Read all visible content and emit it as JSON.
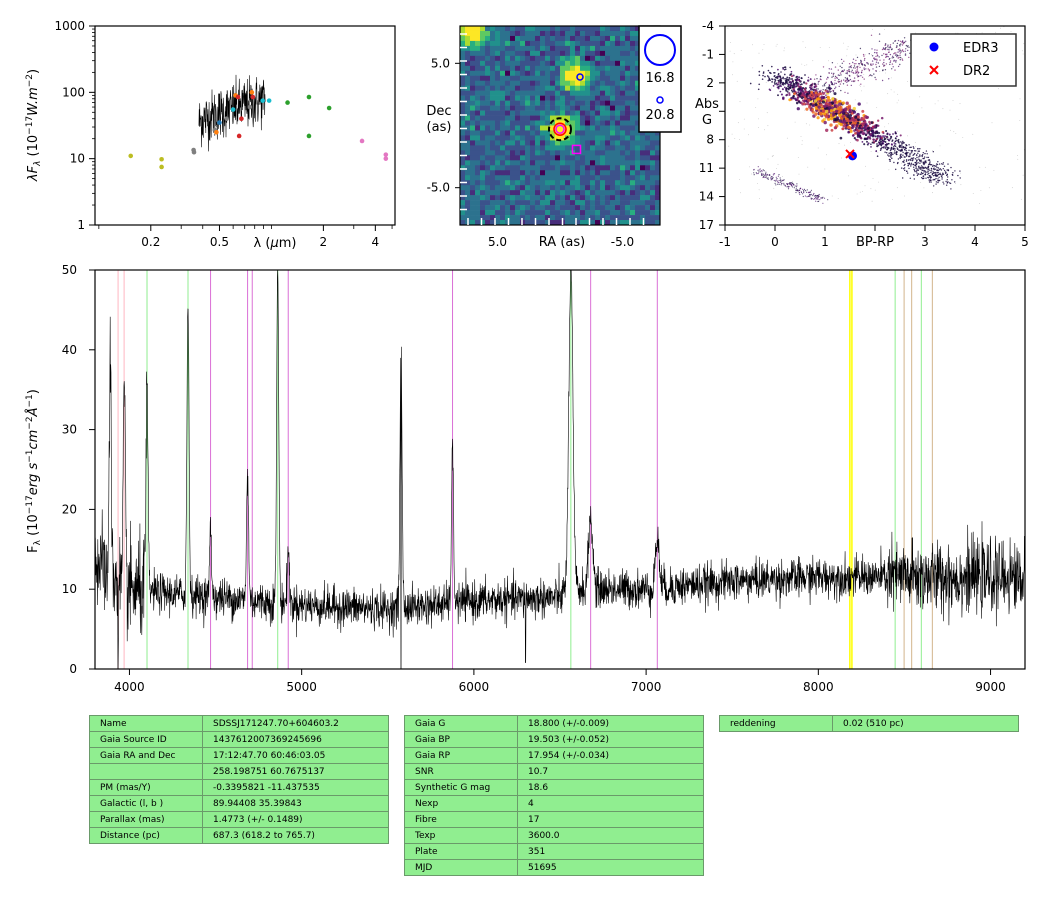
{
  "colors": {
    "sed_black": "#000000",
    "sed_olive": "#bcbd22",
    "sed_gray": "#7f7f7f",
    "sed_red": "#d62728",
    "sed_orange": "#ff7f0e",
    "sed_cyan": "#17becf",
    "sed_blue": "#1f77b4",
    "sed_green": "#2ca02c",
    "sed_pink": "#e377c2",
    "img_dark": "#2c3b6e",
    "img_teal": "#21908d",
    "img_yellow": "#fde725",
    "hr_edr3": "#0000ff",
    "hr_dr2": "#ff0000",
    "line_pink": "#ffb6c1",
    "line_green": "#90ee90",
    "line_violet": "#da70d6",
    "line_yellow": "#ffff00",
    "line_tan": "#d2b48c",
    "table_fill": "#90ee90"
  },
  "chart_data": [
    {
      "type": "scatter",
      "id": "sed",
      "ylabel": "λF_λ (10^-17 W.m^-2)",
      "xlabel": "λ (μm)",
      "x_scale": "log",
      "y_scale": "log",
      "xlim": [
        0.095,
        5.2
      ],
      "ylim": [
        1,
        1000
      ],
      "x_ticks": [
        "0.2",
        "0.5",
        "2",
        "4"
      ],
      "x_tick_values": [
        0.2,
        0.5,
        2,
        4
      ],
      "y_ticks": [
        "1",
        "10",
        "100",
        "1000"
      ],
      "y_tick_values": [
        1,
        10,
        100,
        1000
      ],
      "spectrum_segment": {
        "x_range": [
          0.38,
          0.92
        ],
        "y_level": 60
      },
      "points": [
        {
          "x": 0.153,
          "y": 11.0,
          "c": "sed_olive"
        },
        {
          "x": 0.231,
          "y": 9.8,
          "c": "sed_olive"
        },
        {
          "x": 0.231,
          "y": 7.5,
          "c": "sed_olive"
        },
        {
          "x": 0.354,
          "y": 13.5,
          "c": "sed_gray"
        },
        {
          "x": 0.356,
          "y": 12.5,
          "c": "sed_gray"
        },
        {
          "x": 0.47,
          "y": 27.0,
          "c": "sed_gray"
        },
        {
          "x": 0.48,
          "y": 25.0,
          "c": "sed_orange"
        },
        {
          "x": 0.5,
          "y": 35.0,
          "c": "sed_blue"
        },
        {
          "x": 0.55,
          "y": 40.0,
          "c": "sed_gray"
        },
        {
          "x": 0.6,
          "y": 55.0,
          "c": "sed_cyan"
        },
        {
          "x": 0.62,
          "y": 90.0,
          "c": "sed_orange"
        },
        {
          "x": 0.64,
          "y": 85.0,
          "c": "sed_red"
        },
        {
          "x": 0.65,
          "y": 22.0,
          "c": "sed_red"
        },
        {
          "x": 0.67,
          "y": 40.0,
          "c": "sed_red"
        },
        {
          "x": 0.75,
          "y": 60.0,
          "c": "sed_gray"
        },
        {
          "x": 0.77,
          "y": 100.0,
          "c": "sed_orange"
        },
        {
          "x": 0.78,
          "y": 85.0,
          "c": "sed_red"
        },
        {
          "x": 0.89,
          "y": 75.0,
          "c": "sed_cyan"
        },
        {
          "x": 0.97,
          "y": 75.0,
          "c": "sed_cyan"
        },
        {
          "x": 1.24,
          "y": 70.0,
          "c": "sed_green"
        },
        {
          "x": 1.65,
          "y": 85.0,
          "c": "sed_green"
        },
        {
          "x": 1.65,
          "y": 22.0,
          "c": "sed_green"
        },
        {
          "x": 2.16,
          "y": 58.0,
          "c": "sed_green"
        },
        {
          "x": 3.35,
          "y": 18.5,
          "c": "sed_pink"
        },
        {
          "x": 4.6,
          "y": 11.5,
          "c": "sed_pink"
        },
        {
          "x": 4.6,
          "y": 10.0,
          "c": "sed_pink"
        }
      ]
    },
    {
      "type": "heatmap",
      "id": "image",
      "xlabel": "RA (as)",
      "ylabel": "Dec\n(as)",
      "x_ticks": [
        "5.0",
        "-5.0"
      ],
      "x_tick_values": [
        5.0,
        -5.0
      ],
      "y_ticks": [
        "5.0",
        "-5.0"
      ],
      "y_tick_values": [
        5.0,
        -5.0
      ],
      "xlim": [
        8,
        -8
      ],
      "ylim": [
        -8,
        8
      ],
      "sources": [
        {
          "x": 7.0,
          "y": 7.5,
          "flux": 1.0
        },
        {
          "x": -1.2,
          "y": 4.0,
          "flux": 0.9
        },
        {
          "x": 0.0,
          "y": -0.3,
          "flux": 1.0
        }
      ],
      "legend": [
        {
          "label": "16.8",
          "r": 16
        },
        {
          "label": "20.8",
          "r": 3
        }
      ]
    },
    {
      "type": "scatter",
      "id": "hr",
      "xlabel": "BP-RP",
      "ylabel": "Abs\nG",
      "xlim": [
        -1,
        5
      ],
      "ylim": [
        17,
        -4
      ],
      "x_ticks": [
        "-1",
        "0",
        "1",
        "2",
        "3",
        "4",
        "5"
      ],
      "x_tick_values": [
        -1,
        0,
        1,
        2,
        3,
        4,
        5
      ],
      "y_ticks": [
        "-4",
        "-1",
        "2",
        "5",
        "8",
        "11",
        "14",
        "17"
      ],
      "y_tick_values": [
        -4,
        -1,
        2,
        5,
        8,
        11,
        14,
        17
      ],
      "legend": [
        "EDR3",
        "DR2"
      ],
      "edr3": {
        "x": 1.55,
        "y": 9.7
      },
      "dr2": {
        "x": 1.5,
        "y": 9.5
      }
    },
    {
      "type": "line",
      "id": "spectrum",
      "ylabel": "F_λ (10^-17 erg s^-1 cm^-2 Å^-1)",
      "xlim": [
        3800,
        9200
      ],
      "ylim": [
        0,
        50
      ],
      "x_ticks": [
        "4000",
        "5000",
        "6000",
        "7000",
        "8000",
        "9000"
      ],
      "x_tick_values": [
        4000,
        5000,
        6000,
        7000,
        8000,
        9000
      ],
      "y_ticks": [
        "0",
        "10",
        "20",
        "30",
        "40",
        "50"
      ],
      "y_tick_values": [
        0,
        10,
        20,
        30,
        40,
        50
      ],
      "continuum": [
        [
          3800,
          14
        ],
        [
          3900,
          11
        ],
        [
          4000,
          10
        ],
        [
          4200,
          9.5
        ],
        [
          4500,
          9
        ],
        [
          5000,
          8
        ],
        [
          5500,
          7.5
        ],
        [
          6000,
          8.5
        ],
        [
          6500,
          9
        ],
        [
          6560,
          10
        ],
        [
          7000,
          10
        ],
        [
          7500,
          11
        ],
        [
          8000,
          11.5
        ],
        [
          8500,
          11.5
        ],
        [
          9200,
          11.5
        ]
      ],
      "emission_lines": [
        {
          "x": 3889,
          "peak": 38
        },
        {
          "x": 3970,
          "peak": 34
        },
        {
          "x": 4102,
          "peak": 35
        },
        {
          "x": 4340,
          "peak": 46
        },
        {
          "x": 4471,
          "peak": 17
        },
        {
          "x": 4686,
          "peak": 24
        },
        {
          "x": 4861,
          "peak": 50
        },
        {
          "x": 4922,
          "peak": 15
        },
        {
          "x": 5577,
          "peak": 41
        },
        {
          "x": 5876,
          "peak": 27
        },
        {
          "x": 6563,
          "peak": 50
        },
        {
          "x": 6678,
          "peak": 19
        },
        {
          "x": 7065,
          "peak": 16
        }
      ],
      "absorption_lines": [
        {
          "x": 3934,
          "depth": 0
        },
        {
          "x": 5577,
          "depth": 0
        },
        {
          "x": 6300,
          "depth": 0.8
        }
      ],
      "marker_lines": [
        {
          "x": 3934,
          "c": "line_pink"
        },
        {
          "x": 3969,
          "c": "line_pink"
        },
        {
          "x": 4102,
          "c": "line_green"
        },
        {
          "x": 4340,
          "c": "line_green"
        },
        {
          "x": 4471,
          "c": "line_violet"
        },
        {
          "x": 4686,
          "c": "line_violet"
        },
        {
          "x": 4713,
          "c": "line_violet"
        },
        {
          "x": 4861,
          "c": "line_green"
        },
        {
          "x": 4922,
          "c": "line_violet"
        },
        {
          "x": 5876,
          "c": "line_violet"
        },
        {
          "x": 6563,
          "c": "line_green"
        },
        {
          "x": 6678,
          "c": "line_violet"
        },
        {
          "x": 7065,
          "c": "line_violet"
        },
        {
          "x": 8183,
          "c": "line_yellow"
        },
        {
          "x": 8195,
          "c": "line_yellow"
        },
        {
          "x": 8446,
          "c": "line_green"
        },
        {
          "x": 8498,
          "c": "line_tan"
        },
        {
          "x": 8542,
          "c": "line_tan"
        },
        {
          "x": 8598,
          "c": "line_green"
        },
        {
          "x": 8662,
          "c": "line_tan"
        }
      ]
    }
  ],
  "tables": {
    "t1": [
      [
        "Name",
        "SDSSJ171247.70+604603.2"
      ],
      [
        "Gaia Source ID",
        "1437612007369245696"
      ],
      [
        "Gaia RA and Dec",
        "17:12:47.70    60:46:03.05"
      ],
      [
        "",
        "258.198751    60.7675137"
      ],
      [
        "PM (mas/Y)",
        "-0.3395821    -11.437535"
      ],
      [
        "Galactic (l, b )",
        "89.94408    35.39843"
      ],
      [
        "Parallax (mas)",
        "1.4773 (+/- 0.1489)"
      ],
      [
        "Distance (pc)",
        "687.3 (618.2 to 765.7)"
      ]
    ],
    "t2": [
      [
        "Gaia G",
        "18.800 (+/-0.009)"
      ],
      [
        "Gaia BP",
        "19.503 (+/-0.052)"
      ],
      [
        "Gaia RP",
        "17.954 (+/-0.034)"
      ],
      [
        "SNR",
        "10.7"
      ],
      [
        "Synthetic G mag",
        "18.6"
      ],
      [
        "Nexp",
        "4"
      ],
      [
        "Fibre",
        "17"
      ],
      [
        "Texp",
        "3600.0"
      ],
      [
        "Plate",
        "351"
      ],
      [
        "MJD",
        "51695"
      ]
    ],
    "t3": [
      [
        "reddening",
        "0.02 (510 pc)"
      ]
    ]
  }
}
